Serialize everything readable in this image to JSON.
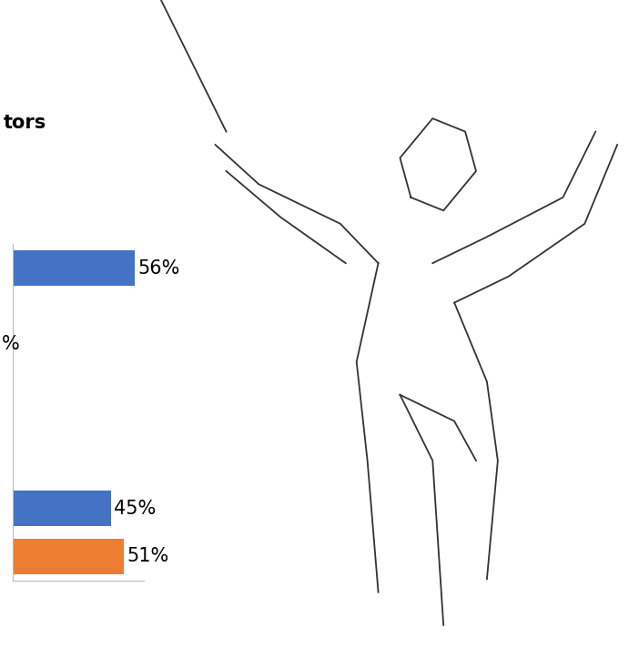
{
  "chart_data": {
    "type": "bar",
    "orientation": "horizontal",
    "title": "tors",
    "categories": [
      null,
      null,
      null,
      null,
      null,
      null,
      null
    ],
    "values": [
      56,
      null,
      null,
      null,
      null,
      45,
      51
    ],
    "value_labels": [
      "56%",
      null,
      null,
      null,
      null,
      "45%",
      "51%"
    ],
    "colors": [
      "#4472c4",
      "#4472c4",
      "#4472c4",
      "#4472c4",
      "#4472c4",
      "#4472c4",
      "#ed7d31"
    ],
    "data_labels": true,
    "tick_labels": false,
    "grid": false,
    "xlim": [
      0,
      60
    ],
    "xticks": [],
    "annotations": [
      "%"
    ]
  }
}
